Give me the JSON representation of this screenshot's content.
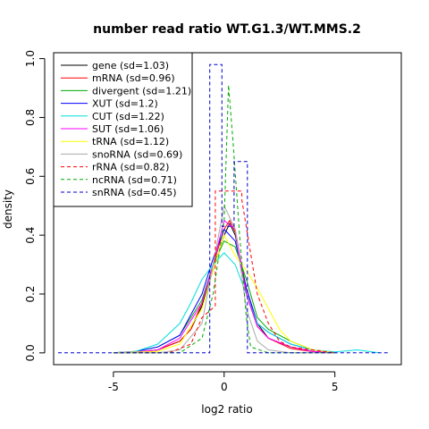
{
  "chart_data": {
    "type": "line",
    "title": "number read ratio WT.G1.3/WT.MMS.2",
    "xlabel": "log2 ratio",
    "ylabel": "density",
    "xlim": [
      -7.7,
      8
    ],
    "ylim": [
      -0.04,
      1.02
    ],
    "xticks": [
      -5,
      0,
      5
    ],
    "yticks": [
      0.0,
      0.2,
      0.4,
      0.6,
      0.8,
      1.0
    ],
    "xtick_labels": [
      "-5",
      "0",
      "5"
    ],
    "ytick_labels": [
      "0.0",
      "0.2",
      "0.4",
      "0.6",
      "0.8",
      "1.0"
    ],
    "grid": false,
    "legend_position": "top-left",
    "series": [
      {
        "name": "gene (sd=1.03)",
        "color": "#000000",
        "dashed": false,
        "x": [
          -5,
          -4,
          -3,
          -2,
          -1.5,
          -1,
          -0.5,
          0,
          0.25,
          0.5,
          1,
          1.5,
          2,
          3,
          4,
          5
        ],
        "y": [
          0,
          0.002,
          0.01,
          0.04,
          0.08,
          0.16,
          0.28,
          0.4,
          0.44,
          0.4,
          0.22,
          0.1,
          0.05,
          0.02,
          0.005,
          0
        ]
      },
      {
        "name": "mRNA (sd=0.96)",
        "color": "#ff0000",
        "dashed": false,
        "x": [
          -5,
          -4,
          -3,
          -2,
          -1.5,
          -1,
          -0.5,
          0,
          0.25,
          0.5,
          1,
          1.5,
          2,
          3,
          4,
          5
        ],
        "y": [
          0,
          0.002,
          0.01,
          0.04,
          0.08,
          0.17,
          0.3,
          0.42,
          0.45,
          0.41,
          0.2,
          0.09,
          0.05,
          0.015,
          0.004,
          0
        ]
      },
      {
        "name": "divergent (sd=1.21)",
        "color": "#00aa00",
        "dashed": false,
        "x": [
          -5,
          -4,
          -3,
          -2,
          -1,
          -0.5,
          0,
          0.5,
          1,
          1.5,
          2,
          3,
          4,
          5
        ],
        "y": [
          0,
          0.005,
          0.02,
          0.06,
          0.18,
          0.3,
          0.38,
          0.36,
          0.25,
          0.12,
          0.08,
          0.04,
          0.01,
          0
        ]
      },
      {
        "name": "XUT (sd=1.2)",
        "color": "#0000ff",
        "dashed": false,
        "x": [
          -5,
          -4,
          -3,
          -2,
          -1,
          -0.5,
          0,
          0.5,
          1,
          1.5,
          2,
          3,
          4,
          5
        ],
        "y": [
          0,
          0.005,
          0.02,
          0.06,
          0.2,
          0.32,
          0.42,
          0.38,
          0.22,
          0.1,
          0.07,
          0.03,
          0.01,
          0
        ]
      },
      {
        "name": "CUT (sd=1.22)",
        "color": "#00dddd",
        "dashed": false,
        "x": [
          -5,
          -4,
          -3,
          -2,
          -1.5,
          -1,
          -0.5,
          0,
          0.5,
          1,
          1.5,
          2,
          3,
          4,
          5,
          6,
          7
        ],
        "y": [
          0,
          0.005,
          0.03,
          0.1,
          0.17,
          0.25,
          0.3,
          0.34,
          0.3,
          0.2,
          0.1,
          0.07,
          0.03,
          0.01,
          0.003,
          0.01,
          0
        ]
      },
      {
        "name": "SUT (sd=1.06)",
        "color": "#ff00ff",
        "dashed": false,
        "x": [
          -5,
          -4,
          -3,
          -2,
          -1,
          -0.5,
          0,
          0.5,
          1,
          1.5,
          2,
          3,
          4,
          5
        ],
        "y": [
          0,
          0.003,
          0.01,
          0.05,
          0.17,
          0.3,
          0.45,
          0.42,
          0.2,
          0.09,
          0.05,
          0.02,
          0.005,
          0
        ]
      },
      {
        "name": "tRNA (sd=1.12)",
        "color": "#ffff00",
        "dashed": false,
        "x": [
          -5,
          -3,
          -2,
          -1,
          -0.5,
          0,
          0.5,
          1,
          1.5,
          2,
          2.5,
          3,
          4,
          5
        ],
        "y": [
          0,
          0.005,
          0.03,
          0.15,
          0.28,
          0.4,
          0.33,
          0.28,
          0.22,
          0.15,
          0.08,
          0.04,
          0.01,
          0
        ]
      },
      {
        "name": "snoRNA (sd=0.69)",
        "color": "#aaaaaa",
        "dashed": false,
        "x": [
          -5,
          -3,
          -2,
          -1,
          -0.5,
          0,
          0.5,
          1,
          1.5,
          2,
          3,
          5
        ],
        "y": [
          0,
          0,
          0.01,
          0.1,
          0.3,
          0.5,
          0.42,
          0.15,
          0.04,
          0.01,
          0,
          0
        ]
      },
      {
        "name": "rRNA (sd=0.82)",
        "color": "#ff0000",
        "dashed": true,
        "x": [
          -5,
          -2.5,
          -1.5,
          -1,
          -0.4,
          -0.4,
          0.2,
          0.2,
          0.8,
          0.8,
          1.5,
          2,
          2.5,
          3,
          4,
          5
        ],
        "y": [
          0,
          0,
          0.03,
          0.12,
          0.16,
          0.55,
          0.55,
          0.55,
          0.55,
          0.52,
          0.2,
          0.1,
          0.04,
          0.02,
          0.01,
          0
        ]
      },
      {
        "name": "ncRNA (sd=0.71)",
        "color": "#00aa00",
        "dashed": true,
        "x": [
          -5,
          -2,
          -1,
          -0.5,
          0,
          0.2,
          0.4,
          0.7,
          1,
          1.2,
          2,
          3,
          5
        ],
        "y": [
          0,
          0,
          0.05,
          0.2,
          0.45,
          0.91,
          0.72,
          0.4,
          0.12,
          0.02,
          0,
          0,
          0
        ]
      },
      {
        "name": "snRNA (sd=0.45)",
        "color": "#0000cc",
        "dashed": true,
        "x": [
          -7.5,
          -0.65,
          -0.65,
          -0.1,
          -0.1,
          0.45,
          0.45,
          1.05,
          1.05,
          7.5
        ],
        "y": [
          0,
          0,
          0.98,
          0.98,
          0.43,
          0.43,
          0.65,
          0.65,
          0,
          0
        ]
      }
    ]
  }
}
